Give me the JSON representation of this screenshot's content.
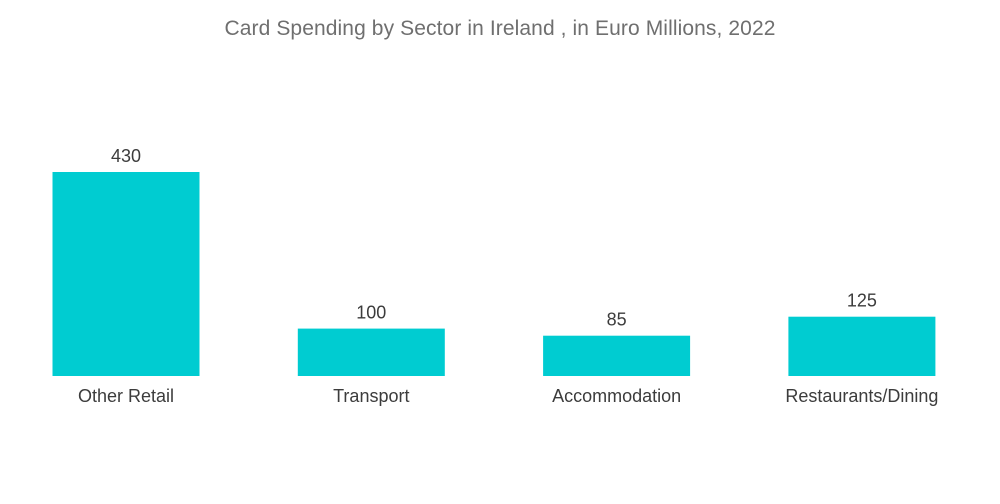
{
  "title": "Card Spending by Sector in Ireland , in Euro Millions, 2022",
  "colors": {
    "bar": "#00ccd1",
    "text": "#3c3c3c",
    "title": "#6f6f6f"
  },
  "chart_data": {
    "type": "bar",
    "title": "Card Spending by Sector in Ireland , in Euro Millions, 2022",
    "categories": [
      "Other Retail",
      "Transport",
      "Accommodation",
      "Restaurants/Dining"
    ],
    "values": [
      430,
      100,
      85,
      125
    ],
    "xlabel": "",
    "ylabel": "",
    "ylim": [
      0,
      430
    ],
    "grid": false,
    "legend": "none",
    "data_labels": true
  }
}
